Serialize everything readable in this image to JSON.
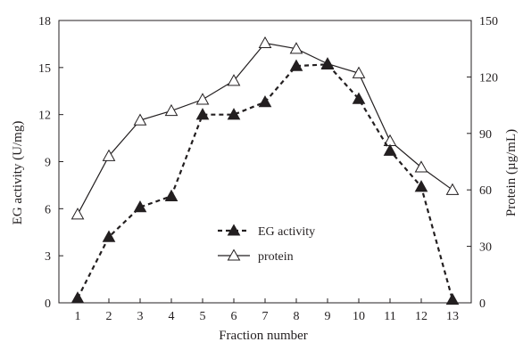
{
  "chart_data": {
    "type": "line",
    "x_axis": {
      "label": "Fraction number",
      "ticks": [
        1,
        2,
        3,
        4,
        5,
        6,
        7,
        8,
        9,
        10,
        11,
        12,
        13
      ]
    },
    "y_axis_left": {
      "label": "EG activity (U/mg)",
      "range": [
        0,
        18
      ],
      "ticks": [
        0,
        3,
        6,
        9,
        12,
        15,
        18
      ]
    },
    "y_axis_right": {
      "label": "Protein (µg/mL)",
      "range": [
        0,
        150
      ],
      "ticks": [
        0,
        30,
        60,
        90,
        120,
        150
      ]
    },
    "series": [
      {
        "name": "EG activity",
        "axis": "left",
        "line_style": "dashed",
        "marker": "filled-triangle",
        "x": [
          1,
          2,
          3,
          4,
          5,
          6,
          7,
          8,
          9,
          10,
          11,
          12,
          13
        ],
        "y": [
          0.3,
          4.2,
          6.1,
          6.8,
          12.0,
          12.0,
          12.8,
          15.1,
          15.2,
          13.0,
          9.7,
          7.4,
          0.2
        ]
      },
      {
        "name": "protein",
        "axis": "right",
        "line_style": "solid",
        "marker": "open-triangle",
        "x": [
          1,
          2,
          3,
          4,
          5,
          6,
          7,
          8,
          9,
          10,
          11,
          12,
          13
        ],
        "y": [
          47,
          78,
          97,
          102,
          108,
          118,
          138,
          135,
          127,
          122,
          86,
          72,
          60
        ]
      }
    ],
    "grid": false,
    "legend_position": "center"
  }
}
